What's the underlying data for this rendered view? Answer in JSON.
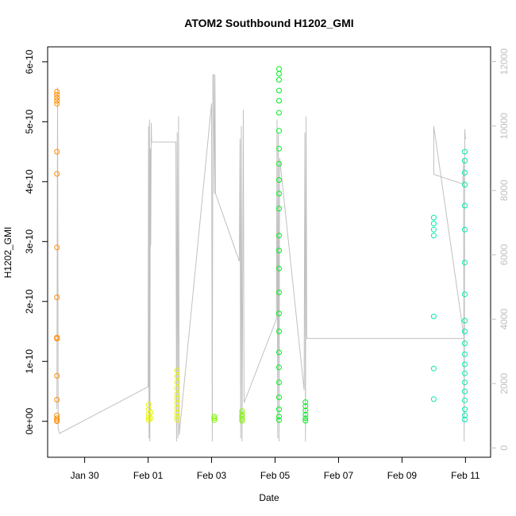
{
  "chart_data": {
    "type": "scatter",
    "title": "ATOM2 Southbound H1202_GMI",
    "xlabel": "Date",
    "ylabel": "H1202_GMI",
    "x_ticks": [
      "Jan 30",
      "Feb 01",
      "Feb 03",
      "Feb 05",
      "Feb 07",
      "Feb 09",
      "Feb 11"
    ],
    "y_ticks": [
      "0e+00",
      "1e-10",
      "2e-10",
      "3e-10",
      "4e-10",
      "5e-10",
      "6e-10"
    ],
    "y2_ticks": [
      "0",
      "2000",
      "4000",
      "6000",
      "8000",
      "10000",
      "12000"
    ],
    "xlim": [
      "2017-01-28T20:00",
      "2017-02-11T19:00"
    ],
    "ylim": [
      -6e-11,
      6.25e-10
    ],
    "y2lim": [
      -290,
      12460
    ],
    "grid": false,
    "series": [
      {
        "color": "#ff8c00",
        "points": [
          [
            "2017-01-29T03:00",
            5.5e-10
          ],
          [
            "2017-01-29T03:00",
            5.45e-10
          ],
          [
            "2017-01-29T03:00",
            5.4e-10
          ],
          [
            "2017-01-29T03:00",
            5.35e-10
          ],
          [
            "2017-01-29T03:00",
            5.3e-10
          ],
          [
            "2017-01-29T03:00",
            4.5e-10
          ],
          [
            "2017-01-29T03:00",
            4.13e-10
          ],
          [
            "2017-01-29T03:00",
            2.9e-10
          ],
          [
            "2017-01-29T03:00",
            2.07e-10
          ],
          [
            "2017-01-29T03:00",
            1.4e-10
          ],
          [
            "2017-01-29T03:00",
            1.38e-10
          ],
          [
            "2017-01-29T03:00",
            7.6e-11
          ],
          [
            "2017-01-29T03:00",
            3.6e-11
          ],
          [
            "2017-01-29T03:00",
            1e-11
          ],
          [
            "2017-01-29T03:00",
            5e-12
          ],
          [
            "2017-01-29T03:00",
            2e-12
          ],
          [
            "2017-01-29T03:00",
            0
          ]
        ]
      },
      {
        "color": "#e8f400",
        "points": [
          [
            "2017-02-01T00:30",
            2.8e-11
          ],
          [
            "2017-02-01T00:30",
            2e-11
          ],
          [
            "2017-02-01T00:30",
            1.2e-11
          ],
          [
            "2017-02-01T00:30",
            6e-12
          ],
          [
            "2017-02-01T00:30",
            2e-12
          ],
          [
            "2017-02-01T02:00",
            1.5e-11
          ],
          [
            "2017-02-01T02:00",
            5e-12
          ],
          [
            "2017-02-01T22:00",
            8.5e-11
          ],
          [
            "2017-02-01T22:00",
            7.5e-11
          ],
          [
            "2017-02-01T22:00",
            6.5e-11
          ],
          [
            "2017-02-01T22:00",
            5.5e-11
          ],
          [
            "2017-02-01T22:00",
            4.5e-11
          ],
          [
            "2017-02-01T22:00",
            3.8e-11
          ],
          [
            "2017-02-01T22:00",
            3e-11
          ],
          [
            "2017-02-01T22:00",
            2.2e-11
          ],
          [
            "2017-02-01T22:00",
            1.4e-11
          ],
          [
            "2017-02-01T22:00",
            8e-12
          ],
          [
            "2017-02-01T22:00",
            3e-12
          ]
        ]
      },
      {
        "color": "#7ff400",
        "points": [
          [
            "2017-02-03T02:00",
            8e-12
          ],
          [
            "2017-02-03T02:00",
            5e-12
          ],
          [
            "2017-02-03T02:00",
            2e-12
          ],
          [
            "2017-02-03T23:00",
            1.7e-11
          ],
          [
            "2017-02-03T23:00",
            1.2e-11
          ],
          [
            "2017-02-03T23:00",
            8e-12
          ],
          [
            "2017-02-03T23:00",
            4e-12
          ],
          [
            "2017-02-03T23:00",
            1e-12
          ]
        ]
      },
      {
        "color": "#00ee20",
        "points": [
          [
            "2017-02-05T03:00",
            5.88e-10
          ],
          [
            "2017-02-05T03:00",
            5.8e-10
          ],
          [
            "2017-02-05T03:00",
            5.7e-10
          ],
          [
            "2017-02-05T03:00",
            5.52e-10
          ],
          [
            "2017-02-05T03:00",
            5.35e-10
          ],
          [
            "2017-02-05T03:00",
            5.15e-10
          ],
          [
            "2017-02-05T03:00",
            4.85e-10
          ],
          [
            "2017-02-05T03:00",
            4.55e-10
          ],
          [
            "2017-02-05T03:00",
            4.3e-10
          ],
          [
            "2017-02-05T03:00",
            4.03e-10
          ],
          [
            "2017-02-05T03:00",
            3.8e-10
          ],
          [
            "2017-02-05T03:00",
            3.55e-10
          ],
          [
            "2017-02-05T03:00",
            3.1e-10
          ],
          [
            "2017-02-05T03:00",
            2.85e-10
          ],
          [
            "2017-02-05T03:00",
            2.55e-10
          ],
          [
            "2017-02-05T03:00",
            2.15e-10
          ],
          [
            "2017-02-05T03:00",
            1.8e-10
          ],
          [
            "2017-02-05T03:00",
            1.5e-10
          ],
          [
            "2017-02-05T03:00",
            1.15e-10
          ],
          [
            "2017-02-05T03:00",
            9e-11
          ],
          [
            "2017-02-05T03:00",
            6.5e-11
          ],
          [
            "2017-02-05T03:00",
            4e-11
          ],
          [
            "2017-02-05T03:00",
            2e-11
          ],
          [
            "2017-02-05T03:00",
            8e-12
          ],
          [
            "2017-02-05T03:00",
            2e-12
          ],
          [
            "2017-02-05T23:00",
            3.2e-11
          ],
          [
            "2017-02-05T23:00",
            2.5e-11
          ],
          [
            "2017-02-05T23:00",
            1.8e-11
          ],
          [
            "2017-02-05T23:00",
            1.1e-11
          ],
          [
            "2017-02-05T23:00",
            5e-12
          ],
          [
            "2017-02-05T23:00",
            1e-12
          ]
        ]
      },
      {
        "color": "#00e8b0",
        "points": [
          [
            "2017-02-10T00:00",
            3.4e-10
          ],
          [
            "2017-02-10T00:00",
            3.3e-10
          ],
          [
            "2017-02-10T00:00",
            3.2e-10
          ],
          [
            "2017-02-10T00:00",
            3.1e-10
          ],
          [
            "2017-02-10T00:00",
            1.75e-10
          ],
          [
            "2017-02-10T00:00",
            8.8e-11
          ],
          [
            "2017-02-10T00:00",
            3.7e-11
          ],
          [
            "2017-02-10T23:30",
            4.5e-10
          ],
          [
            "2017-02-10T23:30",
            4.35e-10
          ],
          [
            "2017-02-10T23:30",
            4.15e-10
          ],
          [
            "2017-02-10T23:30",
            3.95e-10
          ],
          [
            "2017-02-10T23:30",
            3.6e-10
          ],
          [
            "2017-02-10T23:30",
            3.2e-10
          ],
          [
            "2017-02-10T23:30",
            2.65e-10
          ],
          [
            "2017-02-10T23:30",
            2.12e-10
          ],
          [
            "2017-02-10T23:30",
            1.68e-10
          ],
          [
            "2017-02-10T23:30",
            1.5e-10
          ],
          [
            "2017-02-10T23:30",
            1.3e-10
          ],
          [
            "2017-02-10T23:30",
            1.12e-10
          ],
          [
            "2017-02-10T23:30",
            9.5e-11
          ],
          [
            "2017-02-10T23:30",
            8e-11
          ],
          [
            "2017-02-10T23:30",
            6.5e-11
          ],
          [
            "2017-02-10T23:30",
            5e-11
          ],
          [
            "2017-02-10T23:30",
            3.5e-11
          ],
          [
            "2017-02-10T23:30",
            2e-11
          ],
          [
            "2017-02-10T23:30",
            1e-11
          ],
          [
            "2017-02-10T23:30",
            3e-12
          ]
        ]
      }
    ],
    "secondary_series": {
      "color": "#c0c0c0",
      "axis": "right",
      "points": [
        [
          "2017-01-29T03:00",
          1200
        ],
        [
          "2017-01-29T03:30",
          11200
        ],
        [
          "2017-01-29T04:00",
          600
        ],
        [
          "2017-01-29T05:00",
          450
        ],
        [
          "2017-02-01T00:00",
          1900
        ],
        [
          "2017-02-01T00:20",
          10000
        ],
        [
          "2017-02-01T00:40",
          300
        ],
        [
          "2017-02-01T01:00",
          10200
        ],
        [
          "2017-02-01T01:20",
          200
        ],
        [
          "2017-02-01T01:40",
          9300
        ],
        [
          "2017-02-01T02:00",
          6300
        ],
        [
          "2017-02-01T02:20",
          10100
        ],
        [
          "2017-02-01T02:40",
          9500
        ],
        [
          "2017-02-01T21:00",
          9500
        ],
        [
          "2017-02-01T21:30",
          200
        ],
        [
          "2017-02-01T22:00",
          9800
        ],
        [
          "2017-02-01T22:30",
          300
        ],
        [
          "2017-02-01T23:00",
          10300
        ],
        [
          "2017-02-01T23:30",
          400
        ],
        [
          "2017-02-03T00:00",
          10700
        ],
        [
          "2017-02-03T00:30",
          200
        ],
        [
          "2017-02-03T01:00",
          11600
        ],
        [
          "2017-02-03T01:30",
          11600
        ],
        [
          "2017-02-03T02:00",
          7900
        ],
        [
          "2017-02-03T02:30",
          11600
        ],
        [
          "2017-02-03T03:00",
          7900
        ],
        [
          "2017-02-03T21:00",
          5800
        ],
        [
          "2017-02-03T21:30",
          9600
        ],
        [
          "2017-02-03T22:00",
          300
        ],
        [
          "2017-02-03T22:30",
          10000
        ],
        [
          "2017-02-03T23:00",
          200
        ],
        [
          "2017-02-04T00:00",
          10500
        ],
        [
          "2017-02-04T00:30",
          1400
        ],
        [
          "2017-02-05T01:00",
          4000
        ],
        [
          "2017-02-05T01:30",
          10200
        ],
        [
          "2017-02-05T02:00",
          300
        ],
        [
          "2017-02-05T02:30",
          9800
        ],
        [
          "2017-02-05T03:00",
          200
        ],
        [
          "2017-02-05T03:30",
          9000
        ],
        [
          "2017-02-05T22:00",
          1800
        ],
        [
          "2017-02-05T22:30",
          9800
        ],
        [
          "2017-02-05T23:00",
          200
        ],
        [
          "2017-02-05T23:30",
          10300
        ],
        [
          "2017-02-06T00:00",
          3400
        ],
        [
          "2017-02-10T23:00",
          3400
        ],
        [
          "2017-02-10T00:00",
          10000
        ],
        [
          "2017-02-10T00:00",
          8500
        ],
        [
          "2017-02-10T22:00",
          8200
        ],
        [
          "2017-02-10T22:30",
          9000
        ],
        [
          "2017-02-10T23:00",
          200
        ],
        [
          "2017-02-10T23:30",
          9900
        ],
        [
          "2017-02-11T00:00",
          9600
        ]
      ]
    }
  }
}
